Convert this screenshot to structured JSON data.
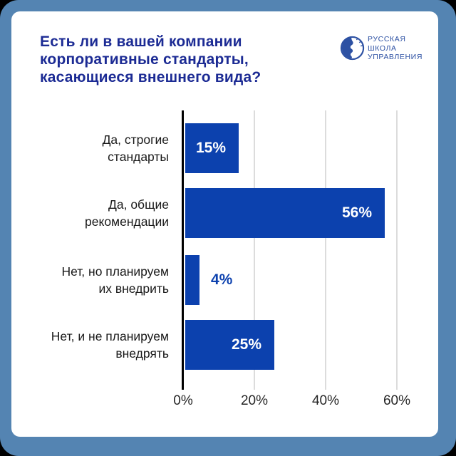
{
  "header": {
    "title": "Есть ли в вашей компании\nкорпоративные стандарты,\nкасающиеся внешнего вида?"
  },
  "logo": {
    "text": "РУССКАЯ\nШКОЛА\nУПРАВЛЕНИЯ",
    "icon": "globe-logo-icon"
  },
  "chart_data": {
    "type": "bar",
    "orientation": "horizontal",
    "title": "Есть ли в вашей компании корпоративные стандарты, касающиеся внешнего вида?",
    "categories": [
      "Да, строгие\nстандарты",
      "Да, общие\nрекомендации",
      "Нет, но планируем\nих внедрить",
      "Нет, и не планируем\nвнедрять"
    ],
    "values": [
      15,
      56,
      4,
      25
    ],
    "value_labels": [
      "15%",
      "56%",
      "4%",
      "25%"
    ],
    "x_ticks": [
      {
        "value": 0,
        "label": "0%"
      },
      {
        "value": 20,
        "label": "20%"
      },
      {
        "value": 40,
        "label": "40%"
      },
      {
        "value": 60,
        "label": "60%"
      }
    ],
    "xlim": [
      0,
      70
    ],
    "grid": true,
    "legend": false
  },
  "colors": {
    "frame": "#5484b2",
    "card": "#ffffff",
    "title": "#1c2b94",
    "bar": "#0c41ae",
    "value_inside": "#ffffff",
    "value_outside": "#0c41ae",
    "category_text": "#191919",
    "tick_text": "#262626",
    "gridline": "#dcdcdc",
    "axis": "#000000",
    "logo": "#2d51a3"
  }
}
